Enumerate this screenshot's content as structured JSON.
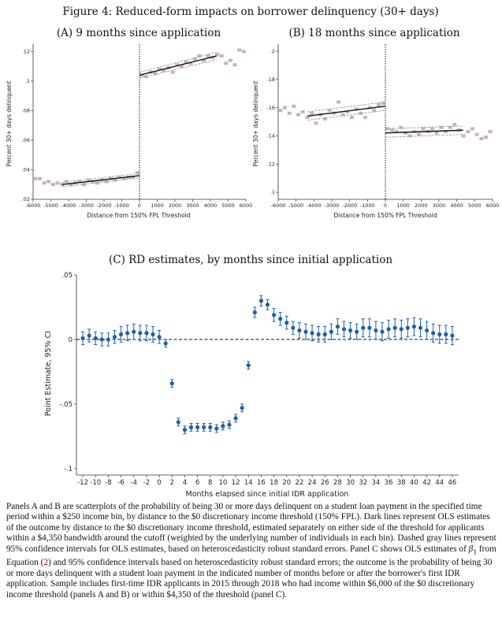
{
  "figure_title": "Figure 4: Reduced-form impacts on borrower delinquency (30+ days)",
  "chart_data": [
    {
      "type": "scatter",
      "title": "(A) 9 months since application",
      "xlabel": "Distance from 150% FPL Threshold",
      "ylabel": "Percent 30+ days delinquent",
      "xlim": [
        -6000,
        6000
      ],
      "ylim": [
        0.02,
        0.125
      ],
      "xticks": [
        -6000,
        -5000,
        -4000,
        -3000,
        -2000,
        -1000,
        0,
        1000,
        2000,
        3000,
        4000,
        5000,
        6000
      ],
      "yticks": [
        0.02,
        0.04,
        0.06,
        0.08,
        0.1,
        0.12
      ],
      "ytick_labels": [
        ".02",
        ".04",
        ".06",
        ".08",
        ".1",
        ".12"
      ],
      "threshold": 0,
      "bin_colors": "#c9b3b3",
      "bins_x": [
        -5875,
        -5625,
        -5375,
        -5125,
        -4875,
        -4625,
        -4375,
        -4125,
        -3875,
        -3625,
        -3375,
        -3125,
        -2875,
        -2625,
        -2375,
        -2125,
        -1875,
        -1625,
        -1375,
        -1125,
        -875,
        -625,
        -375,
        -125,
        125,
        375,
        625,
        875,
        1125,
        1375,
        1625,
        1875,
        2125,
        2375,
        2625,
        2875,
        3125,
        3375,
        3625,
        3875,
        4125,
        4375,
        4625,
        4875,
        5125,
        5375,
        5625,
        5875
      ],
      "bins_y": [
        0.034,
        0.034,
        0.031,
        0.032,
        0.03,
        0.031,
        0.03,
        0.032,
        0.03,
        0.031,
        0.032,
        0.03,
        0.033,
        0.032,
        0.031,
        0.033,
        0.032,
        0.034,
        0.033,
        0.035,
        0.034,
        0.035,
        0.035,
        0.038,
        0.104,
        0.103,
        0.106,
        0.105,
        0.108,
        0.107,
        0.109,
        0.106,
        0.111,
        0.11,
        0.113,
        0.112,
        0.115,
        0.117,
        0.114,
        0.117,
        0.116,
        0.118,
        0.117,
        0.112,
        0.114,
        0.111,
        0.121,
        0.12
      ],
      "fit_left": {
        "x": [
          -4350,
          0
        ],
        "y": [
          0.03,
          0.036
        ],
        "ci_low": [
          0.0285,
          0.0345
        ],
        "ci_high": [
          0.0315,
          0.0375
        ]
      },
      "fit_right": {
        "x": [
          0,
          4350
        ],
        "y": [
          0.104,
          0.117
        ],
        "ci_low": [
          0.102,
          0.1145
        ],
        "ci_high": [
          0.106,
          0.1195
        ]
      }
    },
    {
      "type": "scatter",
      "title": "(B) 18 months since application",
      "xlabel": "Distance from 150% FPL Threshold",
      "ylabel": "Percent 30+ days delinquent",
      "xlim": [
        -6000,
        6000
      ],
      "ylim": [
        0.095,
        0.205
      ],
      "xticks": [
        -6000,
        -5000,
        -4000,
        -3000,
        -2000,
        -1000,
        0,
        1000,
        2000,
        3000,
        4000,
        5000,
        6000
      ],
      "yticks": [
        0.1,
        0.12,
        0.14,
        0.16,
        0.18,
        0.2
      ],
      "ytick_labels": [
        ".1",
        ".12",
        ".14",
        ".16",
        ".18",
        ".2"
      ],
      "threshold": 0,
      "bin_colors": "#c9b3b3",
      "bins_x": [
        -5875,
        -5625,
        -5375,
        -5125,
        -4875,
        -4625,
        -4375,
        -4125,
        -3875,
        -3625,
        -3375,
        -3125,
        -2875,
        -2625,
        -2375,
        -2125,
        -1875,
        -1625,
        -1375,
        -1125,
        -875,
        -625,
        -375,
        -125,
        125,
        375,
        625,
        875,
        1125,
        1375,
        1625,
        1875,
        2125,
        2375,
        2625,
        2875,
        3125,
        3375,
        3625,
        3875,
        4125,
        4375,
        4625,
        4875,
        5125,
        5375,
        5625,
        5875
      ],
      "bins_y": [
        0.158,
        0.16,
        0.156,
        0.161,
        0.155,
        0.157,
        0.153,
        0.156,
        0.149,
        0.155,
        0.152,
        0.158,
        0.156,
        0.164,
        0.155,
        0.157,
        0.153,
        0.159,
        0.156,
        0.153,
        0.16,
        0.158,
        0.162,
        0.163,
        0.145,
        0.144,
        0.143,
        0.146,
        0.142,
        0.14,
        0.143,
        0.141,
        0.145,
        0.143,
        0.145,
        0.142,
        0.146,
        0.143,
        0.146,
        0.148,
        0.144,
        0.14,
        0.143,
        0.145,
        0.141,
        0.138,
        0.139,
        0.143
      ],
      "fit_left": {
        "x": [
          -4350,
          0
        ],
        "y": [
          0.154,
          0.161
        ],
        "ci_low": [
          0.151,
          0.158
        ],
        "ci_high": [
          0.157,
          0.164
        ]
      },
      "fit_right": {
        "x": [
          0,
          4350
        ],
        "y": [
          0.142,
          0.144
        ],
        "ci_low": [
          0.139,
          0.141
        ],
        "ci_high": [
          0.145,
          0.147
        ]
      }
    },
    {
      "type": "scatter",
      "title": "(C) RD estimates, by months since initial application",
      "xlabel": "Months elapsed since initial IDR application",
      "ylabel": "Point Estimate, 95% CI",
      "xlim": [
        -13,
        47
      ],
      "ylim": [
        -0.105,
        0.05
      ],
      "xticks": [
        -12,
        -10,
        -8,
        -6,
        -4,
        -2,
        0,
        2,
        4,
        6,
        8,
        10,
        12,
        14,
        16,
        18,
        20,
        22,
        24,
        26,
        28,
        30,
        32,
        34,
        36,
        38,
        40,
        42,
        44,
        46
      ],
      "yticks": [
        -0.1,
        -0.05,
        0,
        0.05
      ],
      "ytick_labels": [
        "-.1",
        "-.05",
        "0",
        ".05"
      ],
      "color": "#1f5fa8",
      "x": [
        -12,
        -11,
        -10,
        -9,
        -8,
        -7,
        -6,
        -5,
        -4,
        -3,
        -2,
        -1,
        0,
        1,
        2,
        3,
        4,
        5,
        6,
        7,
        8,
        9,
        10,
        11,
        12,
        13,
        14,
        15,
        16,
        17,
        18,
        19,
        20,
        21,
        22,
        23,
        24,
        25,
        26,
        27,
        28,
        29,
        30,
        31,
        32,
        33,
        34,
        35,
        36,
        37,
        38,
        39,
        40,
        41,
        42,
        43,
        44,
        45,
        46
      ],
      "estimate": [
        0.001,
        0.003,
        0.001,
        0.0,
        0.0,
        0.002,
        0.004,
        0.005,
        0.006,
        0.005,
        0.005,
        0.004,
        0.002,
        -0.003,
        -0.034,
        -0.064,
        -0.07,
        -0.068,
        -0.068,
        -0.068,
        -0.068,
        -0.069,
        -0.067,
        -0.066,
        -0.061,
        -0.053,
        -0.02,
        0.021,
        0.03,
        0.027,
        0.019,
        0.016,
        0.013,
        0.009,
        0.007,
        0.006,
        0.005,
        0.004,
        0.004,
        0.006,
        0.01,
        0.008,
        0.007,
        0.006,
        0.009,
        0.009,
        0.007,
        0.006,
        0.008,
        0.009,
        0.008,
        0.009,
        0.01,
        0.009,
        0.007,
        0.005,
        0.004,
        0.004,
        0.003
      ],
      "ci_halfwidth": [
        0.005,
        0.005,
        0.005,
        0.005,
        0.005,
        0.005,
        0.006,
        0.006,
        0.006,
        0.006,
        0.006,
        0.006,
        0.005,
        0.003,
        0.003,
        0.003,
        0.003,
        0.003,
        0.003,
        0.003,
        0.003,
        0.003,
        0.003,
        0.003,
        0.003,
        0.003,
        0.003,
        0.004,
        0.004,
        0.004,
        0.005,
        0.005,
        0.005,
        0.005,
        0.006,
        0.006,
        0.006,
        0.006,
        0.006,
        0.006,
        0.006,
        0.006,
        0.006,
        0.006,
        0.007,
        0.007,
        0.007,
        0.007,
        0.007,
        0.007,
        0.007,
        0.007,
        0.007,
        0.007,
        0.007,
        0.007,
        0.007,
        0.007,
        0.007
      ]
    }
  ],
  "caption_parts": {
    "p1": "Panels A and B are scatterplots of the probability of being 30 or more days delinquent on a student loan payment in the specified time period within a $250 income bin, by distance to the $0 discretionary income threshold (150% FPL). Dark lines represent OLS estimates of the outcome by distance to the $0 discretionary income threshold, estimated separately on either side of the threshold for applicants within a $4,350 bandwidth around the cutoff (weighted by the underlying number of individuals in each bin). Dashed gray lines represent 95% confidence intervals for OLS estimates, based on heteroscedasticity robust standard errors. Panel C shows OLS estimates of ",
    "beta": "β",
    "beta_sub": "1",
    "p2": " from Equation (",
    "eq": "2",
    "p3": ") and 95% confidence intervals based on heteroscedasticity robust standard errors; the outcome is the probability of being 30 or more days delinquent with a student loan payment in the indicated number of months before or after the borrower's first IDR application. Sample includes first-time IDR applicants in 2015 through 2018 who had income within $6,000 of the $0 discretionary income threshold (panels A and B) or within $4,350 of the threshold (panel C)."
  }
}
